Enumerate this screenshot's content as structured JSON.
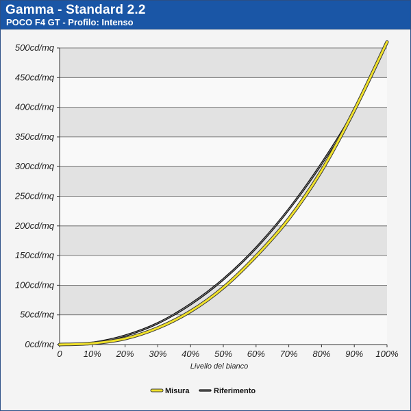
{
  "header": {
    "title": "Gamma - Standard 2.2",
    "subtitle": "POCO F4 GT - Profilo: Intenso"
  },
  "colors": {
    "header_bg": "#1a56a6",
    "measure": "#f0e12a",
    "reference": "#111111",
    "band": "#e2e2e2",
    "plot_bg": "#f9f9f9"
  },
  "chart_data": {
    "type": "line",
    "title": "Gamma - Standard 2.2",
    "subtitle": "POCO F4 GT - Profilo: Intenso",
    "xlabel": "Livello del bianco",
    "ylabel": "",
    "x_ticks": [
      "0",
      "10%",
      "20%",
      "30%",
      "40%",
      "50%",
      "60%",
      "70%",
      "80%",
      "90%",
      "100%"
    ],
    "y_ticks": [
      "0cd/mq",
      "50cd/mq",
      "100cd/mq",
      "150cd/mq",
      "200cd/mq",
      "250cd/mq",
      "300cd/mq",
      "350cd/mq",
      "400cd/mq",
      "450cd/mq",
      "500cd/mq"
    ],
    "xlim": [
      0,
      100
    ],
    "ylim": [
      0,
      500
    ],
    "grid": true,
    "legend_position": "bottom-center",
    "series": [
      {
        "name": "Misura",
        "x": [
          0,
          10,
          20,
          30,
          40,
          50,
          60,
          70,
          80,
          90,
          100
        ],
        "values": [
          0,
          2,
          10,
          28,
          56,
          96,
          149,
          212,
          293,
          395,
          510
        ]
      },
      {
        "name": "Riferimento",
        "x": [
          0,
          10,
          20,
          30,
          40,
          50,
          60,
          70,
          80,
          90,
          100
        ],
        "values": [
          0,
          3,
          15,
          36,
          68,
          110,
          163,
          228,
          305,
          395,
          510
        ]
      }
    ]
  }
}
